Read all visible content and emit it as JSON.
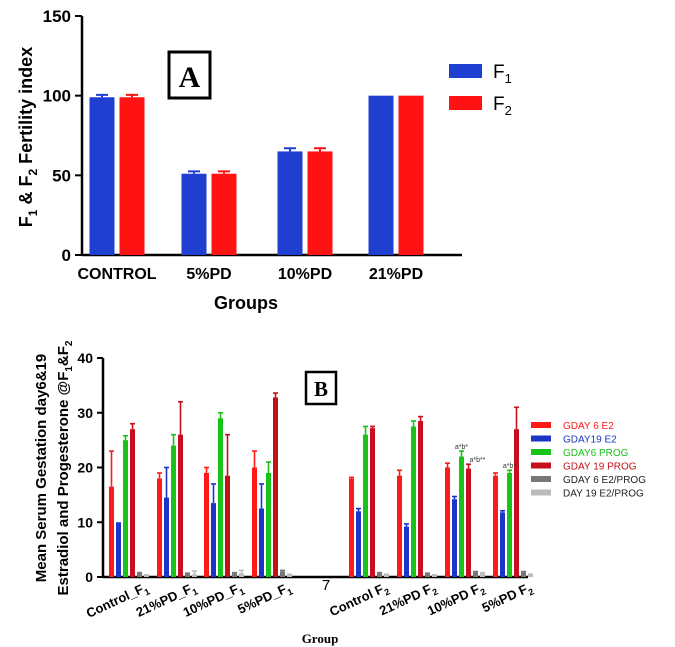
{
  "chart_data": [
    {
      "panel_label": "A",
      "type": "bar",
      "ylabel_parts": [
        "F",
        "1",
        " & F",
        "2",
        " Fertility index"
      ],
      "xlabel": "Groups",
      "ylim": [
        0,
        150
      ],
      "yticks": [
        0,
        50,
        100,
        150
      ],
      "categories": [
        "CONTROL",
        "5%PD",
        "10%PD",
        "21%PD"
      ],
      "series": [
        {
          "name": "F1",
          "name_base": "F",
          "name_sub": "1",
          "color": "#1f3fd1",
          "values": [
            99,
            51,
            65,
            100
          ],
          "errors": [
            1.5,
            1.5,
            2,
            0
          ]
        },
        {
          "name": "F2",
          "name_base": "F",
          "name_sub": "2",
          "color": "#ff1212",
          "values": [
            99,
            51,
            65,
            100
          ],
          "errors": [
            1.5,
            1.5,
            2,
            0
          ]
        }
      ],
      "legend_position": "top-right"
    },
    {
      "panel_label": "B",
      "type": "bar",
      "ylabel_line1": "Mean Serum Gestation day6&19",
      "ylabel_line2_parts": [
        "Estradiol and Progesterone @F",
        "1",
        "&F",
        "2"
      ],
      "xlabel": "Group",
      "ylim": [
        0,
        40
      ],
      "yticks": [
        0,
        10,
        20,
        30,
        40
      ],
      "categories": [
        {
          "base": "Control_F",
          "sub": "1"
        },
        {
          "base": "21%PD_F",
          "sub": "1"
        },
        {
          "base": "10%PD_F",
          "sub": "1"
        },
        {
          "base": "5%PD_F",
          "sub": "1"
        },
        {
          "base": "",
          "sub": ""
        },
        {
          "base": "Control F",
          "sub": "2"
        },
        {
          "base": "21%PD F",
          "sub": "2"
        },
        {
          "base": "10%PD F",
          "sub": "2"
        },
        {
          "base": "5%PD F",
          "sub": "2"
        }
      ],
      "series": [
        {
          "name": "GDAY 6 E2",
          "color": "#ff1a1a",
          "values": [
            16.5,
            18,
            19,
            20,
            null,
            18,
            18.5,
            20,
            18.5
          ],
          "errors": [
            6.5,
            1,
            1,
            3,
            null,
            0.2,
            1,
            0.8,
            0.5
          ]
        },
        {
          "name": "GDAY19 E2",
          "color": "#1a35c8",
          "values": [
            10,
            14.5,
            13.5,
            12.5,
            null,
            12,
            9.2,
            14.2,
            11.8
          ],
          "errors": [
            0,
            5.5,
            3.5,
            4.5,
            null,
            0.5,
            0.5,
            0.5,
            0.3
          ]
        },
        {
          "name": "GDAY6 PROG",
          "color": "#19c219",
          "values": [
            25,
            24,
            29,
            19,
            null,
            26,
            27.5,
            22,
            19
          ],
          "errors": [
            0.8,
            2,
            1,
            2,
            null,
            1.5,
            1,
            1,
            0.5
          ]
        },
        {
          "name": "GDAY 19 PROG",
          "color": "#c4101a",
          "values": [
            27,
            26,
            18.5,
            32.8,
            null,
            27.2,
            28.5,
            19.8,
            27
          ],
          "errors": [
            1,
            6,
            7.5,
            0.8,
            null,
            0.3,
            0.8,
            0.8,
            4
          ]
        },
        {
          "name": "GDAY 6 E2/PROG",
          "color": "#777777",
          "values": [
            0.7,
            0.6,
            0.7,
            1.0,
            null,
            0.7,
            0.6,
            0.9,
            0.9
          ],
          "errors": [
            0.1,
            0.1,
            0.1,
            0.2,
            null,
            0.1,
            0.1,
            0.1,
            0.1
          ]
        },
        {
          "name": "DAY 19 E2/PROG",
          "color": "#bbbbbb",
          "values": [
            0.3,
            0.5,
            0.7,
            0.4,
            null,
            0.4,
            0.3,
            0.7,
            0.4
          ],
          "errors": [
            0.1,
            0.6,
            0.5,
            0.1,
            null,
            0.1,
            0.1,
            0.1,
            0.1
          ]
        }
      ],
      "annotations": [
        {
          "text": "a*b*",
          "category_index": 7,
          "series_index": 2
        },
        {
          "text": "a*b**",
          "category_index": 7,
          "series_index": 3
        },
        {
          "text": "a*b*",
          "category_index": 8,
          "series_index": 2
        }
      ],
      "stray_mark": "7",
      "legend_position": "right"
    }
  ]
}
